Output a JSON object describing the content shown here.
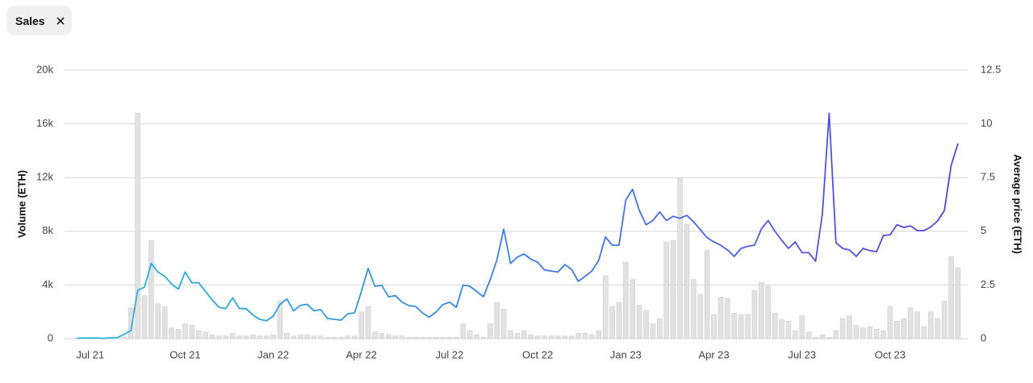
{
  "filter_chip": "Sales",
  "chart_data": {
    "type": "combo",
    "y_label": "Volume (ETH)",
    "y2_label": "Average price (ETH)",
    "categories": [
      null,
      null,
      "Jul 21",
      null,
      null,
      null,
      null,
      null,
      null,
      null,
      null,
      null,
      null,
      null,
      null,
      null,
      "Oct 21",
      null,
      null,
      null,
      null,
      null,
      null,
      null,
      null,
      null,
      null,
      null,
      null,
      "Jan 22",
      null,
      null,
      null,
      null,
      null,
      null,
      null,
      null,
      null,
      null,
      null,
      null,
      "Apr 22",
      null,
      null,
      null,
      null,
      null,
      null,
      null,
      null,
      null,
      null,
      null,
      null,
      "Jul 22",
      null,
      null,
      null,
      null,
      null,
      null,
      null,
      null,
      null,
      null,
      null,
      null,
      "Oct 22",
      null,
      null,
      null,
      null,
      null,
      null,
      null,
      null,
      null,
      null,
      null,
      null,
      "Jan 23",
      null,
      null,
      null,
      null,
      null,
      null,
      null,
      null,
      null,
      null,
      null,
      null,
      "Apr 23",
      null,
      null,
      null,
      null,
      null,
      null,
      null,
      null,
      null,
      null,
      null,
      null,
      "Jul 23",
      null,
      null,
      null,
      null,
      null,
      null,
      null,
      null,
      null,
      null,
      null,
      null,
      "Oct 23",
      null,
      null,
      null,
      null,
      null,
      null,
      null,
      null,
      null,
      null
    ],
    "series": [
      {
        "type": "bar",
        "color": "#e2e2e2",
        "axis": "y",
        "values": [
          50,
          50,
          50,
          50,
          50,
          50,
          50,
          100,
          2300,
          16800,
          3200,
          7300,
          2600,
          2400,
          800,
          700,
          1100,
          1000,
          600,
          500,
          300,
          200,
          200,
          400,
          200,
          200,
          300,
          200,
          200,
          300,
          2800,
          400,
          200,
          300,
          300,
          200,
          200,
          100,
          100,
          100,
          200,
          200,
          2000,
          2400,
          500,
          400,
          300,
          200,
          200,
          100,
          100,
          100,
          100,
          100,
          100,
          100,
          100,
          1100,
          600,
          300,
          100,
          1100,
          2700,
          2200,
          600,
          400,
          600,
          300,
          200,
          200,
          200,
          200,
          200,
          200,
          400,
          400,
          300,
          600,
          4700,
          2400,
          2700,
          5700,
          4400,
          2500,
          2100,
          1100,
          1500,
          7200,
          7300,
          12000,
          8500,
          4400,
          3300,
          6600,
          1800,
          3100,
          3000,
          1900,
          1800,
          1800,
          3600,
          4200,
          3900,
          1900,
          1400,
          1300,
          600,
          1700,
          500,
          100,
          300,
          100,
          600,
          1500,
          1700,
          1000,
          800,
          900,
          700,
          600,
          2400,
          1300,
          1500,
          2300,
          2000,
          900,
          2000,
          1500,
          2800,
          6100,
          5300
        ]
      },
      {
        "type": "line",
        "axis": "y2",
        "colors": [
          "#2bb8d8",
          "#3d7fe0",
          "#5a3fd6"
        ],
        "values": [
          0.02,
          0.03,
          0.03,
          0.03,
          0.02,
          0.04,
          0.05,
          0.2,
          0.37,
          2.25,
          2.4,
          3.5,
          3.1,
          2.9,
          2.55,
          2.3,
          3.1,
          2.6,
          2.6,
          2.2,
          1.8,
          1.46,
          1.4,
          1.9,
          1.4,
          1.4,
          1.1,
          0.9,
          0.83,
          1.05,
          1.6,
          1.85,
          1.3,
          1.55,
          1.6,
          1.3,
          1.35,
          0.94,
          0.9,
          0.86,
          1.16,
          1.2,
          2.2,
          3.27,
          2.44,
          2.48,
          1.95,
          2.0,
          1.7,
          1.54,
          1.5,
          1.2,
          1.0,
          1.24,
          1.58,
          1.7,
          1.46,
          2.5,
          2.44,
          2.2,
          1.95,
          2.74,
          3.68,
          5.1,
          3.5,
          3.8,
          3.94,
          3.7,
          3.56,
          3.2,
          3.15,
          3.1,
          3.45,
          3.23,
          2.67,
          2.9,
          3.15,
          3.64,
          4.73,
          4.35,
          4.35,
          6.45,
          6.95,
          5.97,
          5.3,
          5.5,
          5.9,
          5.5,
          5.7,
          5.6,
          5.74,
          5.44,
          5.07,
          4.7,
          4.5,
          4.35,
          4.13,
          3.83,
          4.2,
          4.3,
          4.35,
          5.1,
          5.5,
          5.0,
          4.58,
          4.2,
          4.5,
          4.0,
          4.0,
          3.6,
          5.8,
          10.5,
          4.47,
          4.2,
          4.13,
          3.83,
          4.2,
          4.1,
          4.05,
          4.8,
          4.84,
          5.3,
          5.18,
          5.25,
          5.03,
          5.03,
          5.2,
          5.48,
          5.97,
          8.07,
          9.08
        ]
      }
    ],
    "ylim": [
      0,
      20000
    ],
    "yticks": [
      0,
      {
        "value": 4000,
        "label": "4k"
      },
      {
        "value": 8000,
        "label": "8k"
      },
      {
        "value": 12000,
        "label": "12k"
      },
      {
        "value": 16000,
        "label": "16k"
      },
      {
        "value": 20000,
        "label": "20k"
      }
    ],
    "y2lim": [
      0,
      12.5
    ],
    "y2ticks": [
      0,
      2.5,
      5,
      7.5,
      10,
      12.5
    ],
    "grid": true
  }
}
